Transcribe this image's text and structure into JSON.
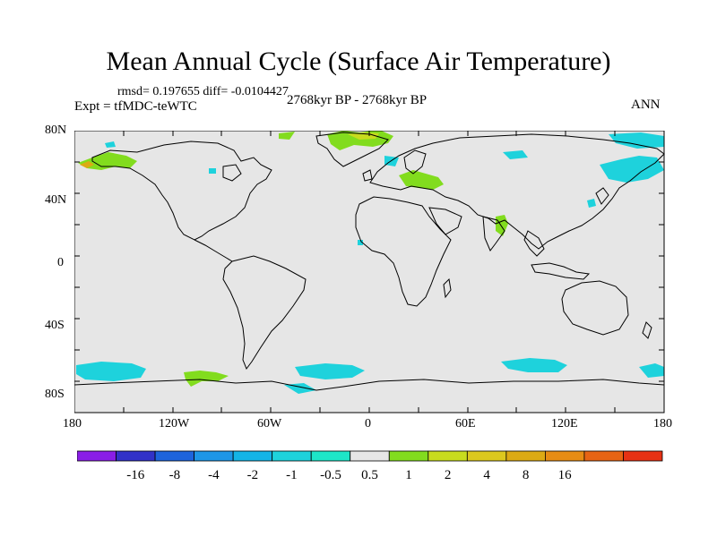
{
  "title": "Mean Annual Cycle (Surface Air Temperature)",
  "stats": "rmsd= 0.197655 diff= -0.0104427",
  "expt": "Expt = tfMDC-teWTC",
  "period": "2768kyr BP - 2768kyr BP",
  "season": "ANN",
  "map": {
    "lat_labels": [
      "80N",
      "40N",
      "0",
      "40S",
      "80S"
    ],
    "lon_labels": [
      "180",
      "120W",
      "60W",
      "0",
      "60E",
      "120E",
      "180"
    ],
    "ocean_color": "#e6e6e6",
    "land_line_color": "#000000"
  },
  "colorbar": {
    "colors": [
      "#8a1ee6",
      "#3232c8",
      "#1e64dc",
      "#1e96e6",
      "#14b4e6",
      "#1ed2dc",
      "#1ee6c8",
      "#e6e6e6",
      "#82dc1e",
      "#c8dc1e",
      "#dcc81e",
      "#dcaa14",
      "#e68c14",
      "#e66414",
      "#e63214"
    ],
    "labels": [
      "-16",
      "-8",
      "-4",
      "-2",
      "-1",
      "-0.5",
      "0.5",
      "1",
      "2",
      "4",
      "8",
      "16"
    ]
  }
}
